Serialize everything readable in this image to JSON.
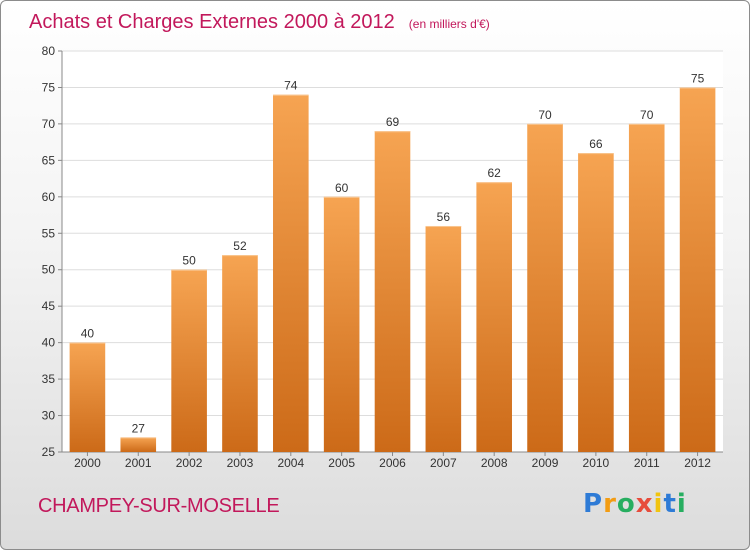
{
  "chart_data": {
    "type": "bar",
    "title": "Achats et Charges Externes 2000 à 2012",
    "subtitle": "(en milliers d'€)",
    "categories": [
      "2000",
      "2001",
      "2002",
      "2003",
      "2004",
      "2005",
      "2006",
      "2007",
      "2008",
      "2009",
      "2010",
      "2011",
      "2012"
    ],
    "values": [
      40,
      27,
      50,
      52,
      74,
      60,
      69,
      56,
      62,
      70,
      66,
      70,
      75
    ],
    "ylim": [
      25,
      80
    ],
    "yticks": [
      25,
      30,
      35,
      40,
      45,
      50,
      55,
      60,
      65,
      70,
      75,
      80
    ],
    "grid": true,
    "bar_color_top": "#f6a452",
    "bar_color_bottom": "#cc6a18",
    "title_color": "#c2185b"
  },
  "footer": {
    "commune": "CHAMPEY-SUR-MOSELLE",
    "logo_letters": [
      {
        "char": "P",
        "color": "#2e7bd6"
      },
      {
        "char": "r",
        "color": "#f39c12"
      },
      {
        "char": "o",
        "color": "#27ae60"
      },
      {
        "char": "x",
        "color": "#e74c3c"
      },
      {
        "char": "i",
        "color": "#f1c40f"
      },
      {
        "char": "t",
        "color": "#2e7bd6"
      },
      {
        "char": "i",
        "color": "#27ae60"
      }
    ]
  }
}
